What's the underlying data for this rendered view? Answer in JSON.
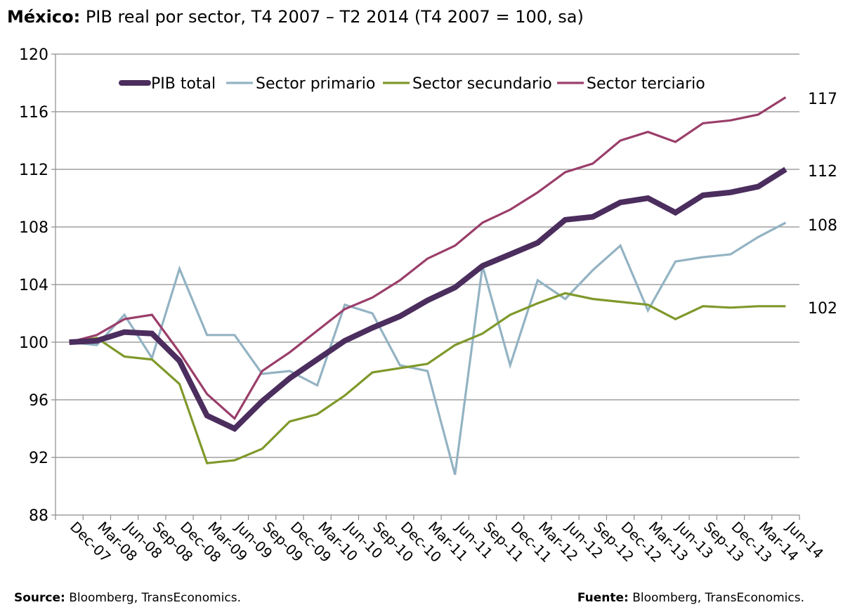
{
  "title_bold": "México:",
  "title_rest": " PIB real por sector, T4 2007 – T2 2014 (T4 2007 = 100, sa)",
  "source_left_label": "Source:",
  "source_left_text": " Bloomberg, TransEconomics.",
  "source_right_label": "Fuente:",
  "source_right_text": " Bloomberg, TransEconomics.",
  "chart_data": {
    "type": "line",
    "x": [
      "Dec-07",
      "Mar-08",
      "Jun-08",
      "Sep-08",
      "Dec-08",
      "Mar-09",
      "Jun-09",
      "Sep-09",
      "Dec-09",
      "Mar-10",
      "Jun-10",
      "Sep-10",
      "Dec-10",
      "Mar-11",
      "Jun-11",
      "Sep-11",
      "Dec-11",
      "Mar-12",
      "Jun-12",
      "Sep-12",
      "Dec-12",
      "Mar-13",
      "Jun-13",
      "Sep-13",
      "Dec-13",
      "Mar-14",
      "Jun-14"
    ],
    "ylim": [
      88,
      120
    ],
    "yticks": [
      88,
      92,
      96,
      100,
      104,
      108,
      112,
      116,
      120
    ],
    "grid": true,
    "legend_position": "top",
    "series": [
      {
        "name": "PIB total",
        "color": "#4b2d5e",
        "values": [
          100.0,
          100.1,
          100.7,
          100.6,
          98.7,
          94.9,
          94.0,
          95.9,
          97.5,
          98.8,
          100.1,
          101.0,
          101.8,
          102.9,
          103.8,
          105.3,
          106.1,
          106.9,
          108.5,
          108.7,
          109.7,
          110.0,
          109.0,
          110.2,
          110.4,
          110.8,
          112.0
        ]
      },
      {
        "name": "Sector primario",
        "color": "#93b3c3",
        "values": [
          100.0,
          99.8,
          101.9,
          98.9,
          105.1,
          100.5,
          100.5,
          97.8,
          98.0,
          97.0,
          102.6,
          102.0,
          98.4,
          98.0,
          90.8,
          105.3,
          98.4,
          104.3,
          103.0,
          105.0,
          106.7,
          102.2,
          105.6,
          105.9,
          106.1,
          107.3,
          108.3
        ]
      },
      {
        "name": "Sector secundario",
        "color": "#7f992b",
        "values": [
          100.0,
          100.3,
          99.0,
          98.8,
          97.1,
          91.6,
          91.8,
          92.6,
          94.5,
          95.0,
          96.3,
          97.9,
          98.2,
          98.5,
          99.8,
          100.6,
          101.9,
          102.7,
          103.4,
          103.0,
          102.8,
          102.6,
          101.6,
          102.5,
          102.4,
          102.5,
          102.5
        ]
      },
      {
        "name": "Sector terciario",
        "color": "#9a3e6a",
        "values": [
          100.0,
          100.5,
          101.6,
          101.9,
          99.3,
          96.4,
          94.7,
          98.0,
          99.3,
          100.8,
          102.3,
          103.1,
          104.3,
          105.8,
          106.7,
          108.3,
          109.2,
          110.4,
          111.8,
          112.4,
          114.0,
          114.6,
          113.9,
          115.2,
          115.4,
          115.8,
          117.0
        ]
      }
    ],
    "end_labels": [
      "117",
      "112",
      "108",
      "102"
    ]
  }
}
